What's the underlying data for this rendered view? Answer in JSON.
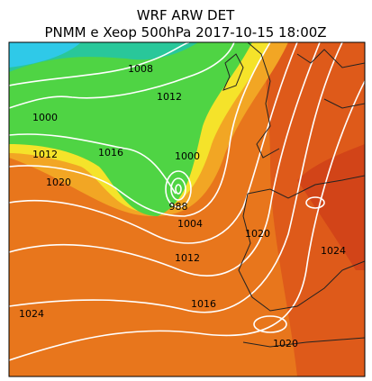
{
  "header": {
    "title": "WRF ARW DET",
    "subtitle": "PNMM e Xeop 500hPa 2017-10-15 18:00Z"
  },
  "map": {
    "contour_labels": [
      "1008",
      "1012",
      "1000",
      "1012",
      "1016",
      "1000",
      "1020",
      "988",
      "1004",
      "1020",
      "1024",
      "1012",
      "1016",
      "1024",
      "1020"
    ]
  }
}
